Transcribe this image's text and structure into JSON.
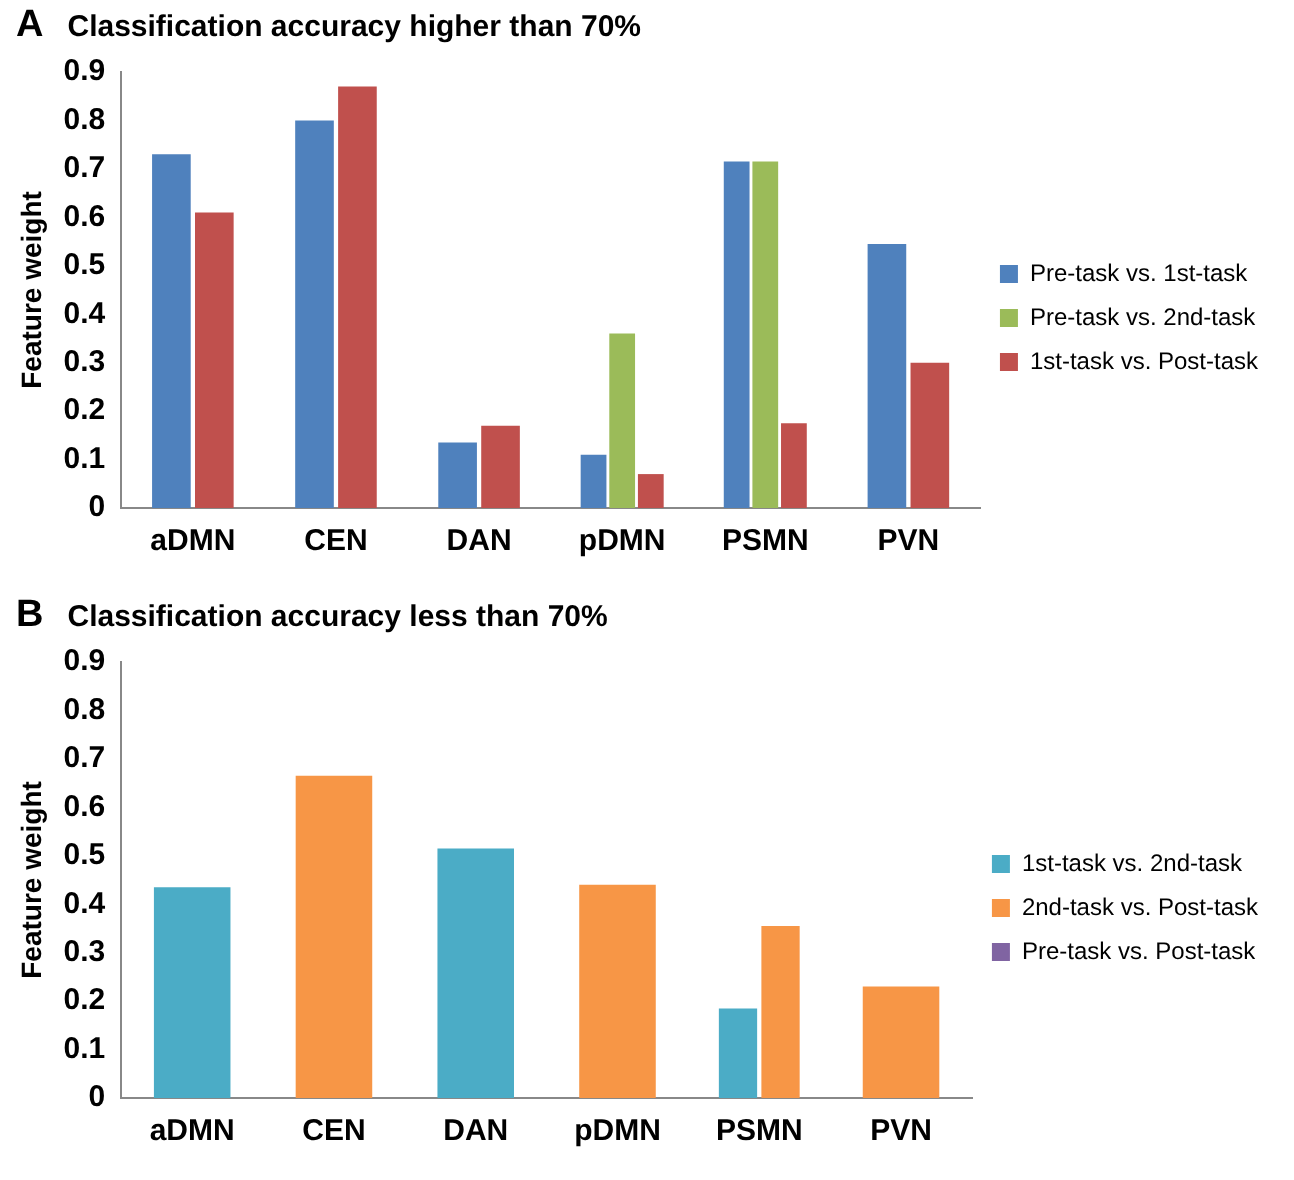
{
  "chart_data": [
    {
      "type": "bar",
      "title": "Classification accuracy higher than 70%",
      "annotations": [
        "A"
      ],
      "ylabel": "Feature weight",
      "categories": [
        "aDMN",
        "CEN",
        "DAN",
        "pDMN",
        "PSMN",
        "PVN"
      ],
      "series": [
        {
          "name": "Pre-task vs. 1st-task",
          "color": "#4f81bd",
          "values": [
            0.73,
            0.8,
            0.135,
            0.11,
            0.715,
            0.545
          ]
        },
        {
          "name": "Pre-task vs. 2nd-task",
          "color": "#9bbb59",
          "values": [
            null,
            null,
            null,
            0.36,
            0.715,
            null
          ]
        },
        {
          "name": "1st-task vs. Post-task",
          "color": "#c0504d",
          "values": [
            0.61,
            0.87,
            0.17,
            0.07,
            0.175,
            0.3
          ]
        }
      ],
      "ylim": [
        0,
        0.9
      ],
      "yticks": [
        0,
        0.1,
        0.2,
        0.3,
        0.4,
        0.5,
        0.6,
        0.7,
        0.8,
        0.9
      ],
      "grid": false,
      "legend": "right"
    },
    {
      "type": "bar",
      "title": "Classification accuracy less than 70%",
      "annotations": [
        "B"
      ],
      "ylabel": "Feature weight",
      "categories": [
        "aDMN",
        "CEN",
        "DAN",
        "pDMN",
        "PSMN",
        "PVN"
      ],
      "series": [
        {
          "name": "1st-task vs. 2nd-task",
          "color": "#4bacc6",
          "values": [
            0.435,
            null,
            0.515,
            null,
            0.185,
            null
          ]
        },
        {
          "name": "2nd-task vs. Post-task",
          "color": "#f79646",
          "values": [
            null,
            0.665,
            null,
            0.44,
            0.355,
            0.23
          ]
        },
        {
          "name": "Pre-task vs. Post-task",
          "color": "#8064a2",
          "values": [
            null,
            null,
            null,
            null,
            null,
            null
          ]
        }
      ],
      "ylim": [
        0,
        0.9
      ],
      "yticks": [
        0,
        0.1,
        0.2,
        0.3,
        0.4,
        0.5,
        0.6,
        0.7,
        0.8,
        0.9
      ],
      "grid": false,
      "legend": "right"
    }
  ]
}
